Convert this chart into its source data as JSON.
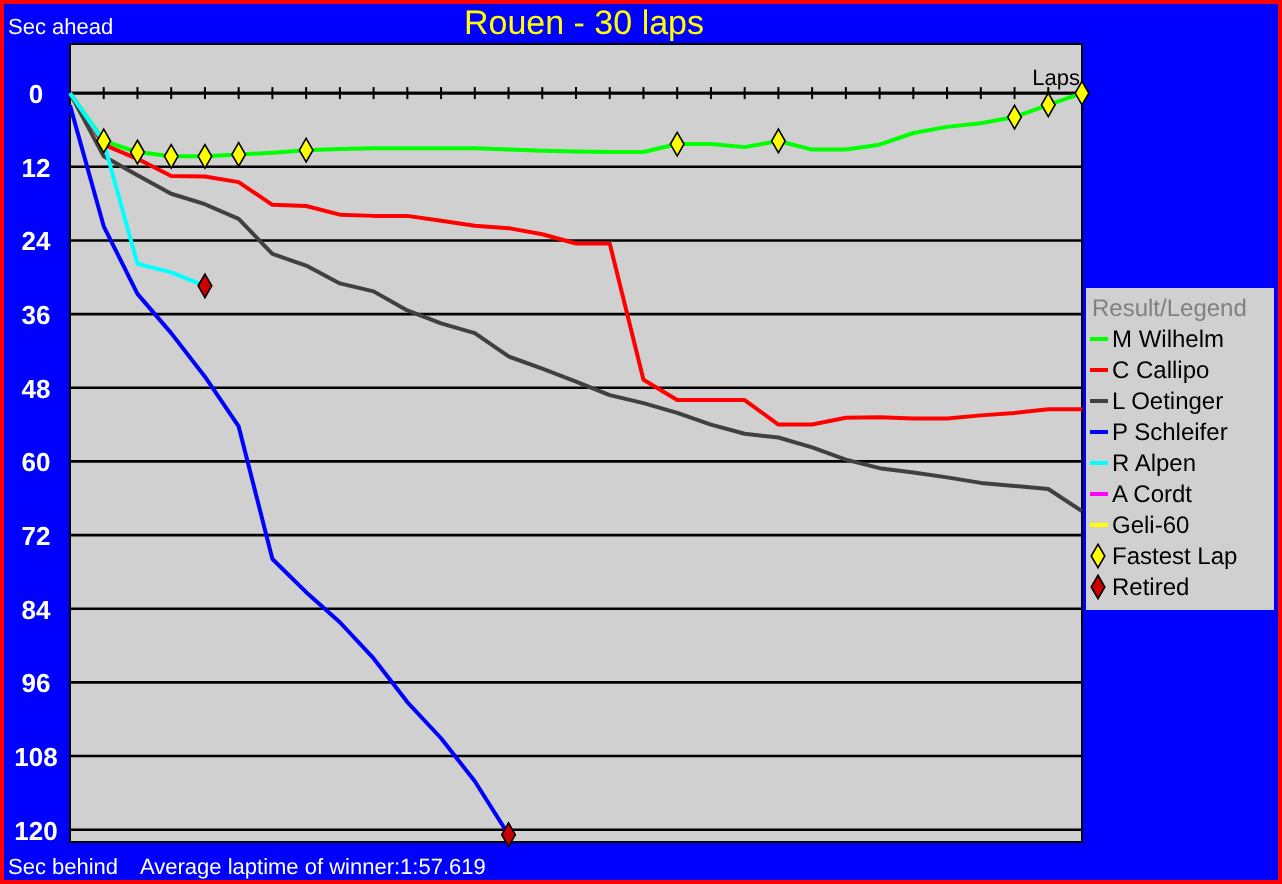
{
  "chart_data": {
    "type": "line",
    "title": "Rouen - 30 laps",
    "ylabel": "Sec ahead",
    "xlabel": "Laps",
    "legend_title": "Result/Legend",
    "annotations": [
      "Sec behind",
      "Average laptime of winner:1:57.619"
    ],
    "categories": [
      null,
      null,
      null,
      null,
      null,
      null,
      null,
      null,
      null,
      null,
      null,
      null,
      null,
      null,
      null,
      null,
      null,
      null,
      null,
      null,
      null,
      null,
      null,
      null,
      null,
      null,
      null,
      null,
      null,
      null,
      null
    ],
    "ylim": [
      122,
      -8
    ],
    "yticks": [
      0,
      12,
      24,
      36,
      48,
      60,
      72,
      84,
      96,
      108,
      120
    ],
    "grid": "y",
    "legend": "right",
    "marker": "none",
    "series": [
      {
        "name": "M Wilhelm",
        "color": "#00ff00",
        "values": [
          0,
          7.8,
          9.6,
          10.3,
          10.3,
          10,
          9.7,
          9.3,
          9.1,
          9,
          9,
          9,
          9,
          9.2,
          9.4,
          9.5,
          9.6,
          9.6,
          8.3,
          8.3,
          8.8,
          7.8,
          9.2,
          9.2,
          8.4,
          6.5,
          5.5,
          4.9,
          3.9,
          1.9,
          0
        ]
      },
      {
        "name": "C Callipo",
        "color": "#ff0000",
        "values": [
          0,
          8.4,
          10.7,
          13.5,
          13.6,
          14.5,
          18.2,
          18.4,
          19.8,
          20,
          20,
          20.8,
          21.6,
          22,
          23,
          24.5,
          24.5,
          46.7,
          50,
          50,
          50,
          54,
          54,
          52.9,
          52.8,
          53,
          53,
          52.5,
          52.1,
          51.5,
          51.5
        ]
      },
      {
        "name": "L Oetinger",
        "color": "#404040",
        "values": [
          0,
          10.3,
          13.4,
          16.4,
          18.1,
          20.5,
          26.2,
          28.1,
          31,
          32.3,
          35.4,
          37.5,
          39.1,
          42.9,
          44.9,
          47,
          49.2,
          50.5,
          52.1,
          54,
          55.5,
          56.1,
          57.7,
          59.7,
          61.1,
          61.8,
          62.6,
          63.5,
          64,
          64.5,
          68.1
        ]
      },
      {
        "name": "P Schleifer",
        "color": "#0000ff",
        "values": [
          2,
          21.7,
          32.7,
          39.1,
          46.2,
          54.3,
          75.9,
          81.3,
          86.2,
          92.1,
          99.2,
          105.1,
          112.1,
          120.8,
          null,
          null,
          null,
          null,
          null,
          null,
          null,
          null,
          null,
          null,
          null,
          null,
          null,
          null,
          null,
          null,
          null
        ]
      },
      {
        "name": "R Alpen",
        "color": "#00ffff",
        "values": [
          0,
          8,
          27.8,
          29.2,
          31.4,
          null,
          null,
          null,
          null,
          null,
          null,
          null,
          null,
          null,
          null,
          null,
          null,
          null,
          null,
          null,
          null,
          null,
          null,
          null,
          null,
          null,
          null,
          null,
          null,
          null,
          null
        ]
      },
      {
        "name": "A Cordt",
        "color": "#ff00ff",
        "values": [
          null,
          null,
          null,
          null,
          null,
          null,
          null,
          null,
          null,
          null,
          null,
          null,
          null,
          null,
          null,
          null,
          null,
          null,
          null,
          null,
          null,
          null,
          null,
          null,
          null,
          null,
          null,
          null,
          null,
          null,
          null
        ]
      },
      {
        "name": "Geli-60",
        "color": "#ffff00",
        "values": [
          null,
          null,
          null,
          null,
          null,
          null,
          null,
          null,
          null,
          null,
          null,
          null,
          null,
          null,
          null,
          null,
          null,
          null,
          null,
          null,
          null,
          null,
          null,
          null,
          null,
          null,
          null,
          null,
          null,
          null,
          null
        ]
      },
      {
        "name": "Fastest Lap",
        "type": "scatter",
        "marker": "diamond",
        "color": "#ffff00",
        "values": [
          null,
          7.8,
          9.6,
          10.3,
          10.3,
          10,
          null,
          9.3,
          null,
          null,
          null,
          null,
          null,
          null,
          null,
          null,
          null,
          null,
          8.3,
          null,
          null,
          7.8,
          null,
          null,
          null,
          null,
          null,
          null,
          3.9,
          1.9,
          0
        ]
      },
      {
        "name": "Retired",
        "type": "scatter",
        "marker": "diamond",
        "color": "#cc0000",
        "values": [
          null,
          null,
          null,
          null,
          31.4,
          null,
          null,
          null,
          null,
          null,
          null,
          null,
          null,
          120.8,
          null,
          null,
          null,
          null,
          null,
          null,
          null,
          null,
          null,
          null,
          null,
          null,
          null,
          null,
          null,
          null,
          null
        ]
      }
    ]
  }
}
